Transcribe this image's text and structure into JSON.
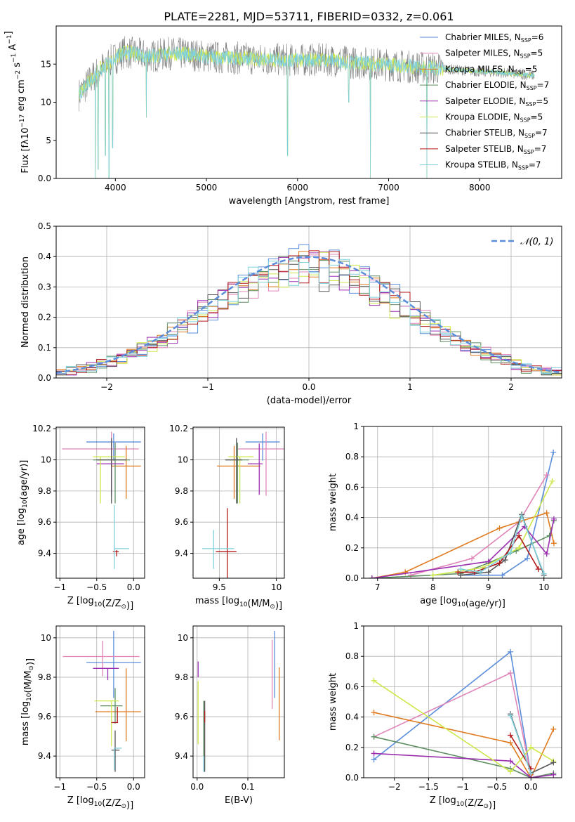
{
  "figure": {
    "title": "PLATE=2281, MJD=53711, FIBERID=0332, z=0.061"
  },
  "series_meta": [
    {
      "name": "Chabrier MILES, N$_{SSP}$=6",
      "label": "Chabrier MILES, N",
      "sub": "SSP",
      "suffix": "=6",
      "color": "#5b8ddb"
    },
    {
      "name": "Salpeter MILES, N$_{SSP}$=5",
      "label": "Salpeter MILES, N",
      "sub": "SSP",
      "suffix": "=5",
      "color": "#e084b8"
    },
    {
      "name": "Kroupa MILES, N$_{SSP}$=5",
      "label": "Kroupa MILES, N",
      "sub": "SSP",
      "suffix": "=5",
      "color": "#e07a1f"
    },
    {
      "name": "Chabrier ELODIE, N$_{SSP}$=7",
      "label": "Chabrier ELODIE, N",
      "sub": "SSP",
      "suffix": "=7",
      "color": "#5e8e62"
    },
    {
      "name": "Salpeter ELODIE, N$_{SSP}$=5",
      "label": "Salpeter ELODIE, N",
      "sub": "SSP",
      "suffix": "=5",
      "color": "#9b2fb0"
    },
    {
      "name": "Kroupa ELODIE, N$_{SSP}$=5",
      "label": "Kroupa ELODIE, N",
      "sub": "SSP",
      "suffix": "=5",
      "color": "#cde84b"
    },
    {
      "name": "Chabrier STELIB, N$_{SSP}$=7",
      "label": "Chabrier STELIB, N",
      "sub": "SSP",
      "suffix": "=7",
      "color": "#555555"
    },
    {
      "name": "Salpeter STELIB, N$_{SSP}$=7",
      "label": "Salpeter STELIB, N",
      "sub": "SSP",
      "suffix": "=7",
      "color": "#b01818"
    },
    {
      "name": "Kroupa STELIB, N$_{SSP}$=7",
      "label": "Kroupa STELIB, N",
      "sub": "SSP",
      "suffix": "=7",
      "color": "#7fd1dc"
    }
  ],
  "chart_data": [
    {
      "id": "spectrum",
      "type": "line",
      "xlabel": "wavelength [Angstrom, rest frame]",
      "ylabel": "Flux [f_λ10^-17 erg cm^-2 s^-1 A^-1]",
      "xlim": [
        3350,
        8900
      ],
      "ylim": [
        0,
        20
      ],
      "xticks": [
        4000,
        5000,
        6000,
        7000,
        8000
      ],
      "yticks": [
        0,
        5,
        10,
        15
      ],
      "data_color": "#808080",
      "continuum": {
        "x": [
          3600,
          3700,
          3800,
          3900,
          4000,
          4100,
          4200,
          4400,
          4600,
          4800,
          5000,
          5200,
          5400,
          5600,
          5800,
          6000,
          6200,
          6400,
          6600,
          6800,
          7000,
          7200,
          7400,
          7600,
          7800,
          8000,
          8200,
          8400,
          8600
        ],
        "y": [
          11.0,
          12.5,
          14.0,
          15.0,
          15.8,
          16.6,
          16.4,
          16.0,
          16.4,
          16.3,
          16.0,
          15.8,
          15.8,
          15.6,
          15.6,
          15.5,
          15.6,
          15.5,
          15.2,
          15.1,
          14.9,
          14.7,
          14.5,
          14.4,
          14.2,
          14.0,
          13.9,
          13.7,
          13.5
        ]
      },
      "absorption_dips": [
        {
          "x": 3780,
          "y": 0.0
        },
        {
          "x": 3810,
          "y": 1.2
        },
        {
          "x": 3890,
          "y": 3.0
        },
        {
          "x": 3930,
          "y": 0.0
        },
        {
          "x": 3970,
          "y": 4.0
        },
        {
          "x": 4340,
          "y": 8.0
        },
        {
          "x": 5890,
          "y": 3.0
        },
        {
          "x": 6563,
          "y": 10.0
        },
        {
          "x": 6800,
          "y": 0.0
        },
        {
          "x": 7420,
          "y": 0.0
        }
      ]
    },
    {
      "id": "residuals",
      "type": "histogram",
      "xlabel": "(data-model)/error",
      "ylabel": "Normed distribution",
      "xlim": [
        -2.5,
        2.5
      ],
      "ylim": [
        0,
        0.5
      ],
      "xticks": [
        -2,
        -1,
        0,
        1,
        2
      ],
      "yticks": [
        0.0,
        0.1,
        0.2,
        0.3,
        0.4,
        0.5
      ],
      "grid": true,
      "legend": {
        "position": "top-right",
        "label": "𝒩(0, 1)",
        "style": "dashed",
        "color": "#5b8ddb"
      },
      "bin_width": 0.1,
      "base_profile": {
        "sigma": 1.0
      }
    },
    {
      "id": "age_vs_Z",
      "type": "errorbar",
      "xlabel": "Z [log10(Z/Z⊙)]",
      "ylabel": "age  [log10(age/yr)]",
      "xlim": [
        -1.05,
        0.15
      ],
      "ylim": [
        9.24,
        10.21
      ],
      "xticks": [
        -1.0,
        -0.5,
        0.0
      ],
      "yticks": [
        9.4,
        9.6,
        9.8,
        10.0,
        10.2
      ],
      "grid": true,
      "points": [
        {
          "x": -0.27,
          "xerr": [
            0.37,
            0.37
          ],
          "y": 10.115,
          "yerr": [
            0.12,
            0.055
          ]
        },
        {
          "x": -0.3,
          "xerr": [
            0.67,
            0.37
          ],
          "y": 10.07,
          "yerr": [
            0.3,
            0.11
          ]
        },
        {
          "x": -0.1,
          "xerr": [
            0.2,
            0.2
          ],
          "y": 9.96,
          "yerr": [
            0.21,
            0.13
          ]
        },
        {
          "x": -0.25,
          "xerr": [
            0.3,
            0.2
          ],
          "y": 10.0,
          "yerr": [
            0.28,
            0.11
          ]
        },
        {
          "x": -0.3,
          "xerr": [
            0.2,
            0.17
          ],
          "y": 9.975,
          "yerr": [
            0.2,
            0.13
          ]
        },
        {
          "x": -0.45,
          "xerr": [
            0.1,
            0.33
          ],
          "y": 10.02,
          "yerr": [
            0.3,
            0.0
          ]
        },
        {
          "x": -0.3,
          "xerr": [
            0.2,
            0.2
          ],
          "y": 10.0,
          "yerr": [
            0.28,
            0.14
          ]
        },
        {
          "x": -0.23,
          "xerr": [
            0.05,
            0.03
          ],
          "y": 9.41,
          "yerr": [
            0.03,
            0.01
          ]
        },
        {
          "x": -0.26,
          "xerr": [
            0.0,
            0.2
          ],
          "y": 9.43,
          "yerr": [
            0.13,
            0.28
          ]
        }
      ]
    },
    {
      "id": "age_vs_mass",
      "type": "errorbar",
      "xlabel": "mass [log10(M/M⊙)]",
      "ylabel": "",
      "xlim": [
        9.27,
        10.07
      ],
      "ylim": [
        9.24,
        10.21
      ],
      "xticks": [
        9.5,
        10.0
      ],
      "yticks": [
        9.4,
        9.6,
        9.8,
        10.0,
        10.2
      ],
      "grid": true,
      "points": [
        {
          "x": 9.88,
          "xerr": [
            0.15,
            0.15
          ],
          "y": 10.115,
          "yerr": [
            0.12,
            0.055
          ]
        },
        {
          "x": 9.91,
          "xerr": [
            0.25,
            0.2
          ],
          "y": 10.07,
          "yerr": [
            0.3,
            0.11
          ]
        },
        {
          "x": 9.63,
          "xerr": [
            0.15,
            0.23
          ],
          "y": 9.96,
          "yerr": [
            0.21,
            0.13
          ]
        },
        {
          "x": 9.66,
          "xerr": [
            0.1,
            0.1
          ],
          "y": 10.0,
          "yerr": [
            0.28,
            0.11
          ]
        },
        {
          "x": 9.85,
          "xerr": [
            0.1,
            0.03
          ],
          "y": 9.975,
          "yerr": [
            0.2,
            0.13
          ]
        },
        {
          "x": 9.68,
          "xerr": [
            0.1,
            0.12
          ],
          "y": 10.02,
          "yerr": [
            0.3,
            0.0
          ]
        },
        {
          "x": 9.65,
          "xerr": [
            0.1,
            0.05
          ],
          "y": 10.0,
          "yerr": [
            0.28,
            0.14
          ]
        },
        {
          "x": 9.57,
          "xerr": [
            0.1,
            0.08
          ],
          "y": 9.41,
          "yerr": [
            0.2,
            0.28
          ]
        },
        {
          "x": 9.45,
          "xerr": [
            0.1,
            0.18
          ],
          "y": 9.43,
          "yerr": [
            0.13,
            0.12
          ]
        }
      ]
    },
    {
      "id": "weight_vs_age",
      "type": "line",
      "xlabel": "age  [log10(age/yr)]",
      "ylabel": "mass weight",
      "xlim": [
        6.75,
        10.32
      ],
      "ylim": [
        0,
        1.0
      ],
      "xticks": [
        7,
        8,
        9,
        10
      ],
      "yticks": [
        0.0,
        0.2,
        0.4,
        0.6,
        0.8,
        1.0
      ],
      "grid": true,
      "series": [
        {
          "x": [
            8.5,
            9.25,
            9.7,
            10.17
          ],
          "y": [
            0.02,
            0.02,
            0.13,
            0.83
          ]
        },
        {
          "x": [
            7.6,
            8.7,
            9.55,
            10.05
          ],
          "y": [
            0.02,
            0.13,
            0.37,
            0.68
          ]
        },
        {
          "x": [
            6.9,
            7.5,
            9.2,
            10.05,
            10.18
          ],
          "y": [
            0.0,
            0.04,
            0.33,
            0.43,
            0.23
          ]
        },
        {
          "x": [
            6.9,
            8.5,
            9.0,
            9.5,
            10.1,
            10.18
          ],
          "y": [
            0.0,
            0.03,
            0.1,
            0.18,
            0.28,
            0.38
          ]
        },
        {
          "x": [
            6.9,
            9.0,
            9.65,
            10.05,
            10.18
          ],
          "y": [
            0.0,
            0.11,
            0.34,
            0.16,
            0.39
          ]
        },
        {
          "x": [
            8.0,
            8.9,
            9.55,
            10.15
          ],
          "y": [
            0.02,
            0.07,
            0.2,
            0.64
          ]
        },
        {
          "x": [
            8.5,
            9.0,
            9.3,
            9.6,
            10.0
          ],
          "y": [
            0.02,
            0.04,
            0.12,
            0.42,
            0.02
          ]
        },
        {
          "x": [
            8.45,
            8.75,
            9.2,
            9.55,
            9.9
          ],
          "y": [
            0.04,
            0.04,
            0.1,
            0.28,
            0.06
          ]
        },
        {
          "x": [
            8.5,
            8.85,
            9.4,
            9.6,
            10.0
          ],
          "y": [
            0.06,
            0.04,
            0.17,
            0.41,
            0.03
          ]
        }
      ]
    },
    {
      "id": "mass_vs_Z",
      "type": "errorbar",
      "xlabel": "Z [log10(Z/Z⊙)]",
      "ylabel": "mass [log10(M/M⊙)]",
      "xlim": [
        -1.05,
        0.15
      ],
      "ylim": [
        9.29,
        10.06
      ],
      "xticks": [
        -1.0,
        -0.5,
        0.0
      ],
      "yticks": [
        9.4,
        9.6,
        9.8,
        10.0
      ],
      "grid": true,
      "points": [
        {
          "x": -0.27,
          "xerr": [
            0.37,
            0.37
          ],
          "y": 9.875,
          "yerr": [
            0.18,
            0.16
          ]
        },
        {
          "x": -0.42,
          "xerr": [
            0.54,
            0.5
          ],
          "y": 9.905,
          "yerr": [
            0.1,
            0.08
          ]
        },
        {
          "x": -0.1,
          "xerr": [
            0.42,
            0.2
          ],
          "y": 9.625,
          "yerr": [
            0.15,
            0.22
          ]
        },
        {
          "x": -0.25,
          "xerr": [
            0.2,
            0.1
          ],
          "y": 9.655,
          "yerr": [
            0.09,
            0.09
          ]
        },
        {
          "x": -0.35,
          "xerr": [
            0.2,
            0.15
          ],
          "y": 9.845,
          "yerr": [
            0.06,
            0.0
          ]
        },
        {
          "x": -0.3,
          "xerr": [
            0.23,
            0.1
          ],
          "y": 9.68,
          "yerr": [
            0.23,
            0.0
          ]
        },
        {
          "x": -0.25,
          "xerr": [
            0.05,
            0.06
          ],
          "y": 9.43,
          "yerr": [
            0.11,
            0.1
          ]
        },
        {
          "x": -0.22,
          "xerr": [
            0.08,
            0.01
          ],
          "y": 9.57,
          "yerr": [
            0.0,
            0.08
          ]
        },
        {
          "x": -0.26,
          "xerr": [
            0.0,
            0.1
          ],
          "y": 9.44,
          "yerr": [
            0.11,
            0.0
          ]
        }
      ]
    },
    {
      "id": "mass_vs_ebv",
      "type": "errorbar",
      "xlabel": "E(B-V)",
      "ylabel": "",
      "xlim": [
        -0.008,
        0.172
      ],
      "ylim": [
        9.29,
        10.06
      ],
      "xticks": [
        0.0,
        0.1
      ],
      "yticks": [
        9.4,
        9.6,
        9.8,
        10.0
      ],
      "grid": true,
      "points": [
        {
          "x": 0.153,
          "xerr": [
            0,
            0
          ],
          "y": 9.875,
          "yerr": [
            0.18,
            0.16
          ]
        },
        {
          "x": 0.148,
          "xerr": [
            0,
            0
          ],
          "y": 9.81,
          "yerr": [
            0.17,
            0.18
          ]
        },
        {
          "x": 0.162,
          "xerr": [
            0,
            0
          ],
          "y": 9.66,
          "yerr": [
            0.18,
            0.19
          ]
        },
        {
          "x": 0.013,
          "xerr": [
            0,
            0
          ],
          "y": 9.5,
          "yerr": [
            0.18,
            0.18
          ]
        },
        {
          "x": 0.002,
          "xerr": [
            0,
            0
          ],
          "y": 9.83,
          "yerr": [
            0.03,
            0.05
          ]
        },
        {
          "x": 0.002,
          "xerr": [
            0,
            0
          ],
          "y": 9.62,
          "yerr": [
            0.16,
            0.16
          ]
        },
        {
          "x": 0.015,
          "xerr": [
            0,
            0
          ],
          "y": 9.5,
          "yerr": [
            0.18,
            0.18
          ]
        },
        {
          "x": 0.015,
          "xerr": [
            0,
            0
          ],
          "y": 9.6,
          "yerr": [
            0.03,
            0.03
          ]
        },
        {
          "x": 0.013,
          "xerr": [
            0,
            0
          ],
          "y": 9.4,
          "yerr": [
            0.08,
            0.0
          ]
        }
      ]
    },
    {
      "id": "weight_vs_Z",
      "type": "line",
      "xlabel": "Z [log10(Z/Z⊙)]",
      "ylabel": "mass weight",
      "xlim": [
        -2.45,
        0.45
      ],
      "ylim": [
        0,
        1.0
      ],
      "xticks": [
        -2.0,
        -1.5,
        -1.0,
        -0.5,
        0.0
      ],
      "yticks": [
        0.0,
        0.2,
        0.4,
        0.6,
        0.8,
        1.0
      ],
      "grid": true,
      "series": [
        {
          "x": [
            -2.3,
            -0.3,
            0.0
          ],
          "y": [
            0.12,
            0.83,
            0.02
          ]
        },
        {
          "x": [
            -2.3,
            -0.3,
            0.0
          ],
          "y": [
            0.27,
            0.69,
            0.02
          ]
        },
        {
          "x": [
            -2.3,
            -0.3,
            0.0,
            0.33
          ],
          "y": [
            0.43,
            0.23,
            0.0,
            0.32
          ]
        },
        {
          "x": [
            -2.3,
            -0.3,
            0.0,
            0.33
          ],
          "y": [
            0.27,
            0.06,
            0.0,
            0.03
          ]
        },
        {
          "x": [
            -2.3,
            -0.3,
            0.0,
            0.33
          ],
          "y": [
            0.16,
            0.11,
            0.0,
            0.02
          ]
        },
        {
          "x": [
            -2.3,
            -0.3,
            0.0,
            0.33
          ],
          "y": [
            0.64,
            0.04,
            0.2,
            0.11
          ]
        },
        {
          "x": [
            -0.3,
            0.0,
            0.33
          ],
          "y": [
            0.42,
            0.03,
            0.1
          ]
        },
        {
          "x": [
            -0.3,
            0.0
          ],
          "y": [
            0.28,
            0.06
          ]
        },
        {
          "x": [
            -0.3,
            0.0
          ],
          "y": [
            0.41,
            0.03
          ]
        }
      ]
    }
  ]
}
